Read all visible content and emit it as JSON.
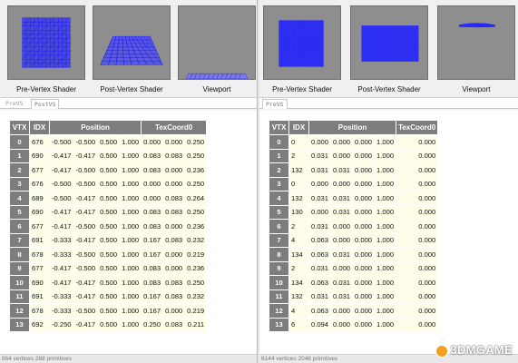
{
  "left": {
    "thumbnails": [
      {
        "label": "Pre-Vertex Shader"
      },
      {
        "label": "Post-Vertex Shader"
      },
      {
        "label": "Viewport"
      }
    ],
    "tabs": [
      "PreVS",
      "PostVS"
    ],
    "table": {
      "headers": [
        "VTX",
        "IDX",
        "Position",
        "TexCoord0"
      ],
      "rows": [
        {
          "vtx": "0",
          "idx": "676",
          "pos": [
            "-0.500",
            "-0.500",
            "0.500",
            "1.000"
          ],
          "tex": [
            "0.000",
            "0.000",
            "0.250"
          ]
        },
        {
          "vtx": "1",
          "idx": "690",
          "pos": [
            "-0.417",
            "-0.417",
            "0.500",
            "1.000"
          ],
          "tex": [
            "0.083",
            "0.083",
            "0.250"
          ]
        },
        {
          "vtx": "2",
          "idx": "677",
          "pos": [
            "-0.417",
            "-0.500",
            "0.500",
            "1.000"
          ],
          "tex": [
            "0.083",
            "0.000",
            "0.236"
          ]
        },
        {
          "vtx": "3",
          "idx": "676",
          "pos": [
            "-0.500",
            "-0.500",
            "0.500",
            "1.000"
          ],
          "tex": [
            "0.000",
            "0.000",
            "0.250"
          ]
        },
        {
          "vtx": "4",
          "idx": "689",
          "pos": [
            "-0.500",
            "-0.417",
            "0.500",
            "1.000"
          ],
          "tex": [
            "0.000",
            "0.083",
            "0.264"
          ]
        },
        {
          "vtx": "5",
          "idx": "690",
          "pos": [
            "-0.417",
            "-0.417",
            "0.500",
            "1.000"
          ],
          "tex": [
            "0.083",
            "0.083",
            "0.250"
          ]
        },
        {
          "vtx": "6",
          "idx": "677",
          "pos": [
            "-0.417",
            "-0.500",
            "0.500",
            "1.000"
          ],
          "tex": [
            "0.083",
            "0.000",
            "0.236"
          ]
        },
        {
          "vtx": "7",
          "idx": "691",
          "pos": [
            "-0.333",
            "-0.417",
            "0.500",
            "1.000"
          ],
          "tex": [
            "0.167",
            "0.083",
            "0.232"
          ]
        },
        {
          "vtx": "8",
          "idx": "678",
          "pos": [
            "-0.333",
            "-0.500",
            "0.500",
            "1.000"
          ],
          "tex": [
            "0.167",
            "0.000",
            "0.219"
          ]
        },
        {
          "vtx": "9",
          "idx": "677",
          "pos": [
            "-0.417",
            "-0.500",
            "0.500",
            "1.000"
          ],
          "tex": [
            "0.083",
            "0.000",
            "0.236"
          ]
        },
        {
          "vtx": "10",
          "idx": "690",
          "pos": [
            "-0.417",
            "-0.417",
            "0.500",
            "1.000"
          ],
          "tex": [
            "0.083",
            "0.083",
            "0.250"
          ]
        },
        {
          "vtx": "11",
          "idx": "691",
          "pos": [
            "-0.333",
            "-0.417",
            "0.500",
            "1.000"
          ],
          "tex": [
            "0.167",
            "0.083",
            "0.232"
          ]
        },
        {
          "vtx": "12",
          "idx": "678",
          "pos": [
            "-0.333",
            "-0.500",
            "0.500",
            "1.000"
          ],
          "tex": [
            "0.167",
            "0.000",
            "0.219"
          ]
        },
        {
          "vtx": "13",
          "idx": "692",
          "pos": [
            "-0.250",
            "-0.417",
            "0.500",
            "1.000"
          ],
          "tex": [
            "0.250",
            "0.083",
            "0.211"
          ]
        }
      ]
    },
    "status": "864 vertices  288 primitives"
  },
  "right": {
    "thumbnails": [
      {
        "label": "Pre-Vertex Shader"
      },
      {
        "label": "Post-Vertex Shader"
      },
      {
        "label": "Viewport"
      }
    ],
    "tabs": [
      "PreVS"
    ],
    "table": {
      "headers": [
        "VTX",
        "IDX",
        "Position",
        "TexCoord0"
      ],
      "rows": [
        {
          "vtx": "0",
          "idx": "0",
          "pos": [
            "0.000",
            "0.000",
            "0.000",
            "1.000"
          ],
          "tex": [
            "0.000"
          ]
        },
        {
          "vtx": "1",
          "idx": "2",
          "pos": [
            "0.031",
            "0.000",
            "0.000",
            "1.000"
          ],
          "tex": [
            "0.000"
          ]
        },
        {
          "vtx": "2",
          "idx": "132",
          "pos": [
            "0.031",
            "0.031",
            "0.000",
            "1.000"
          ],
          "tex": [
            "0.000"
          ]
        },
        {
          "vtx": "3",
          "idx": "0",
          "pos": [
            "0.000",
            "0.000",
            "0.000",
            "1.000"
          ],
          "tex": [
            "0.000"
          ]
        },
        {
          "vtx": "4",
          "idx": "132",
          "pos": [
            "0.031",
            "0.031",
            "0.000",
            "1.000"
          ],
          "tex": [
            "0.000"
          ]
        },
        {
          "vtx": "5",
          "idx": "130",
          "pos": [
            "0.000",
            "0.031",
            "0.000",
            "1.000"
          ],
          "tex": [
            "0.000"
          ]
        },
        {
          "vtx": "6",
          "idx": "2",
          "pos": [
            "0.031",
            "0.000",
            "0.000",
            "1.000"
          ],
          "tex": [
            "0.000"
          ]
        },
        {
          "vtx": "7",
          "idx": "4",
          "pos": [
            "0.063",
            "0.000",
            "0.000",
            "1.000"
          ],
          "tex": [
            "0.000"
          ]
        },
        {
          "vtx": "8",
          "idx": "134",
          "pos": [
            "0.063",
            "0.031",
            "0.000",
            "1.000"
          ],
          "tex": [
            "0.000"
          ]
        },
        {
          "vtx": "9",
          "idx": "2",
          "pos": [
            "0.031",
            "0.000",
            "0.000",
            "1.000"
          ],
          "tex": [
            "0.000"
          ]
        },
        {
          "vtx": "10",
          "idx": "134",
          "pos": [
            "0.063",
            "0.031",
            "0.000",
            "1.000"
          ],
          "tex": [
            "0.000"
          ]
        },
        {
          "vtx": "11",
          "idx": "132",
          "pos": [
            "0.031",
            "0.031",
            "0.000",
            "1.000"
          ],
          "tex": [
            "0.000"
          ]
        },
        {
          "vtx": "12",
          "idx": "4",
          "pos": [
            "0.063",
            "0.000",
            "0.000",
            "1.000"
          ],
          "tex": [
            "0.000"
          ]
        },
        {
          "vtx": "13",
          "idx": "6",
          "pos": [
            "0.094",
            "0.000",
            "0.000",
            "1.000"
          ],
          "tex": [
            "0.000"
          ]
        }
      ]
    },
    "status": "6144 vertices  2048 primitives"
  },
  "watermark": "3DMGAME",
  "colors": {
    "mesh": "#3333ff",
    "thumb_bg": "#8e8e8e",
    "header_bg": "#7d7d7d",
    "cell_bg": "#fdfde8"
  }
}
